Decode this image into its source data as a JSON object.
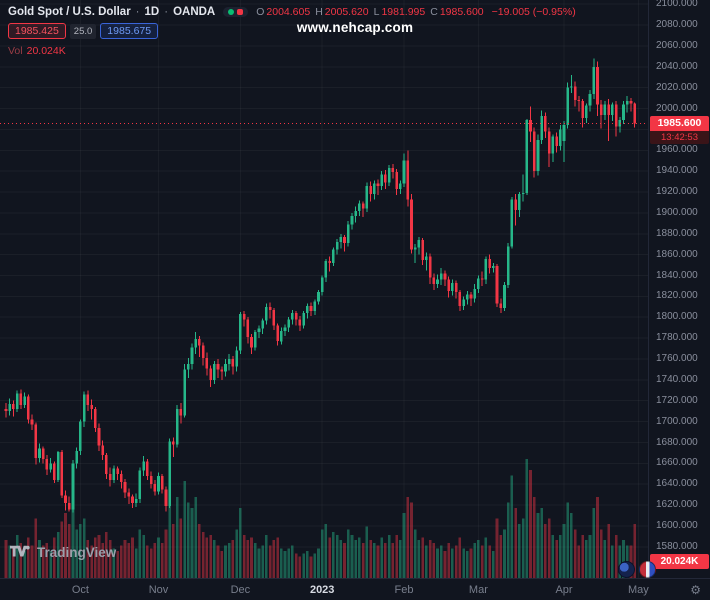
{
  "header": {
    "symbol_title": "Gold Spot / U.S. Dollar",
    "separator": "·",
    "interval": "1D",
    "exchange": "OANDA",
    "ohlc": [
      {
        "label": "O",
        "value": "2004.605"
      },
      {
        "label": "H",
        "value": "2005.620"
      },
      {
        "label": "L",
        "value": "1981.995"
      },
      {
        "label": "C",
        "value": "1985.600"
      }
    ],
    "change": "−19.005 (−0.95%)",
    "sell_price": "1985.425",
    "spread": "25.0",
    "buy_price": "1985.675",
    "volume_label": "Vol",
    "volume_value": "20.024K"
  },
  "watermark": "www.nehcap.com",
  "price_axis": {
    "labels": [
      "2100.000",
      "2080.000",
      "2060.000",
      "2040.000",
      "2020.000",
      "2000.000",
      "1980.000",
      "1960.000",
      "1940.000",
      "1920.000",
      "1900.000",
      "1880.000",
      "1860.000",
      "1840.000",
      "1820.000",
      "1800.000",
      "1780.000",
      "1760.000",
      "1740.000",
      "1720.000",
      "1700.000",
      "1680.000",
      "1660.000",
      "1640.000",
      "1620.000",
      "1600.000",
      "1580.000"
    ],
    "current_price": "1985.600",
    "countdown": "13:42:53",
    "volume_badge": "20.024K"
  },
  "time_axis": {
    "months": [
      {
        "label": "Oct",
        "i": 20
      },
      {
        "label": "Nov",
        "i": 41
      },
      {
        "label": "Dec",
        "i": 63
      },
      {
        "label": "2023",
        "i": 85
      },
      {
        "label": "Feb",
        "i": 107
      },
      {
        "label": "Mar",
        "i": 127
      },
      {
        "label": "Apr",
        "i": 150
      },
      {
        "label": "May",
        "i": 170
      }
    ]
  },
  "footer": {
    "logo": "TradingView"
  },
  "colors": {
    "up": "#26b789",
    "down": "#f23645",
    "accent_blue": "#3964d8",
    "background": "#11151f"
  },
  "chart_data": {
    "type": "candlestick",
    "title": "Gold Spot / U.S. Dollar, 1D, OANDA",
    "x_range": "Sep 2022 – Apr 2023 (daily bars)",
    "x_tick_labels": [
      "Oct",
      "Nov",
      "Dec",
      "2023",
      "Feb",
      "Mar",
      "Apr",
      "May"
    ],
    "ylim": [
      1580,
      2100
    ],
    "y_tick_step": 20,
    "last_bar": {
      "open": 2004.605,
      "high": 2005.62,
      "low": 1981.995,
      "close": 1985.6,
      "volume": "20.024K",
      "change": "−19.005 (−0.95%)"
    },
    "columns": [
      "open",
      "high",
      "low",
      "close",
      "volume_k"
    ],
    "candles": [
      [
        1712,
        1718,
        1704,
        1710,
        14
      ],
      [
        1710,
        1722,
        1706,
        1717,
        12
      ],
      [
        1717,
        1720,
        1705,
        1712,
        11
      ],
      [
        1712,
        1730,
        1709,
        1727,
        16
      ],
      [
        1727,
        1731,
        1712,
        1716,
        13
      ],
      [
        1716,
        1728,
        1713,
        1724,
        10
      ],
      [
        1724,
        1726,
        1698,
        1702,
        15
      ],
      [
        1702,
        1707,
        1692,
        1697,
        12
      ],
      [
        1697,
        1699,
        1659,
        1665,
        22
      ],
      [
        1665,
        1679,
        1661,
        1674,
        14
      ],
      [
        1674,
        1676,
        1660,
        1664,
        12
      ],
      [
        1664,
        1668,
        1649,
        1654,
        13
      ],
      [
        1654,
        1665,
        1651,
        1660,
        10
      ],
      [
        1660,
        1662,
        1641,
        1644,
        15
      ],
      [
        1644,
        1672,
        1642,
        1671,
        17
      ],
      [
        1671,
        1673,
        1627,
        1629,
        21
      ],
      [
        1629,
        1634,
        1615,
        1622,
        24
      ],
      [
        1622,
        1628,
        1614,
        1616,
        20
      ],
      [
        1616,
        1663,
        1613,
        1660,
        26
      ],
      [
        1660,
        1675,
        1655,
        1672,
        18
      ],
      [
        1672,
        1702,
        1668,
        1700,
        20
      ],
      [
        1700,
        1729,
        1695,
        1726,
        22
      ],
      [
        1726,
        1730,
        1710,
        1716,
        14
      ],
      [
        1716,
        1721,
        1702,
        1712,
        12
      ],
      [
        1712,
        1714,
        1690,
        1694,
        15
      ],
      [
        1694,
        1698,
        1672,
        1677,
        16
      ],
      [
        1677,
        1682,
        1663,
        1668,
        13
      ],
      [
        1668,
        1670,
        1645,
        1650,
        17
      ],
      [
        1650,
        1656,
        1638,
        1644,
        14
      ],
      [
        1644,
        1658,
        1641,
        1655,
        11
      ],
      [
        1655,
        1657,
        1644,
        1650,
        10
      ],
      [
        1650,
        1653,
        1636,
        1642,
        12
      ],
      [
        1642,
        1645,
        1627,
        1632,
        14
      ],
      [
        1632,
        1636,
        1621,
        1628,
        13
      ],
      [
        1628,
        1630,
        1617,
        1622,
        15
      ],
      [
        1622,
        1631,
        1618,
        1626,
        11
      ],
      [
        1626,
        1656,
        1622,
        1653,
        18
      ],
      [
        1653,
        1667,
        1648,
        1662,
        16
      ],
      [
        1662,
        1664,
        1644,
        1648,
        12
      ],
      [
        1648,
        1652,
        1636,
        1640,
        11
      ],
      [
        1640,
        1644,
        1629,
        1633,
        13
      ],
      [
        1633,
        1651,
        1630,
        1648,
        15
      ],
      [
        1648,
        1650,
        1631,
        1635,
        13
      ],
      [
        1635,
        1638,
        1614,
        1619,
        18
      ],
      [
        1619,
        1684,
        1617,
        1681,
        34
      ],
      [
        1681,
        1685,
        1666,
        1678,
        20
      ],
      [
        1678,
        1716,
        1675,
        1712,
        30
      ],
      [
        1712,
        1718,
        1698,
        1706,
        22
      ],
      [
        1706,
        1755,
        1704,
        1750,
        36
      ],
      [
        1750,
        1761,
        1742,
        1755,
        28
      ],
      [
        1755,
        1775,
        1750,
        1771,
        26
      ],
      [
        1771,
        1786,
        1765,
        1779,
        30
      ],
      [
        1779,
        1782,
        1762,
        1773,
        20
      ],
      [
        1773,
        1776,
        1754,
        1761,
        17
      ],
      [
        1761,
        1766,
        1744,
        1751,
        15
      ],
      [
        1751,
        1754,
        1733,
        1740,
        16
      ],
      [
        1740,
        1758,
        1736,
        1755,
        14
      ],
      [
        1755,
        1760,
        1742,
        1750,
        12
      ],
      [
        1750,
        1753,
        1740,
        1748,
        10
      ],
      [
        1748,
        1760,
        1743,
        1755,
        12
      ],
      [
        1755,
        1765,
        1749,
        1760,
        13
      ],
      [
        1760,
        1763,
        1745,
        1753,
        14
      ],
      [
        1753,
        1772,
        1748,
        1768,
        18
      ],
      [
        1768,
        1805,
        1765,
        1803,
        26
      ],
      [
        1803,
        1806,
        1791,
        1798,
        16
      ],
      [
        1798,
        1800,
        1775,
        1781,
        14
      ],
      [
        1781,
        1784,
        1765,
        1771,
        15
      ],
      [
        1771,
        1788,
        1768,
        1786,
        13
      ],
      [
        1786,
        1792,
        1780,
        1789,
        11
      ],
      [
        1789,
        1799,
        1784,
        1797,
        12
      ],
      [
        1797,
        1813,
        1793,
        1810,
        16
      ],
      [
        1810,
        1814,
        1799,
        1807,
        12
      ],
      [
        1807,
        1809,
        1788,
        1792,
        14
      ],
      [
        1792,
        1794,
        1773,
        1777,
        15
      ],
      [
        1777,
        1790,
        1774,
        1787,
        11
      ],
      [
        1787,
        1793,
        1782,
        1790,
        10
      ],
      [
        1790,
        1800,
        1786,
        1798,
        11
      ],
      [
        1798,
        1807,
        1793,
        1804,
        12
      ],
      [
        1804,
        1806,
        1792,
        1798,
        9
      ],
      [
        1798,
        1801,
        1787,
        1792,
        8
      ],
      [
        1792,
        1806,
        1789,
        1804,
        9
      ],
      [
        1804,
        1813,
        1799,
        1811,
        10
      ],
      [
        1811,
        1814,
        1801,
        1806,
        8
      ],
      [
        1806,
        1817,
        1802,
        1815,
        9
      ],
      [
        1815,
        1826,
        1812,
        1824,
        11
      ],
      [
        1824,
        1840,
        1821,
        1838,
        18
      ],
      [
        1838,
        1856,
        1834,
        1854,
        20
      ],
      [
        1854,
        1858,
        1844,
        1852,
        15
      ],
      [
        1852,
        1867,
        1849,
        1865,
        17
      ],
      [
        1865,
        1875,
        1860,
        1872,
        16
      ],
      [
        1872,
        1880,
        1866,
        1877,
        14
      ],
      [
        1877,
        1879,
        1863,
        1871,
        13
      ],
      [
        1871,
        1892,
        1868,
        1889,
        18
      ],
      [
        1889,
        1900,
        1884,
        1897,
        16
      ],
      [
        1897,
        1906,
        1891,
        1902,
        14
      ],
      [
        1902,
        1912,
        1897,
        1909,
        15
      ],
      [
        1909,
        1911,
        1896,
        1904,
        13
      ],
      [
        1904,
        1929,
        1901,
        1926,
        19
      ],
      [
        1926,
        1930,
        1911,
        1918,
        14
      ],
      [
        1918,
        1931,
        1913,
        1928,
        13
      ],
      [
        1928,
        1932,
        1917,
        1926,
        12
      ],
      [
        1926,
        1940,
        1922,
        1937,
        15
      ],
      [
        1937,
        1941,
        1923,
        1929,
        13
      ],
      [
        1929,
        1946,
        1926,
        1943,
        16
      ],
      [
        1943,
        1947,
        1933,
        1939,
        13
      ],
      [
        1939,
        1942,
        1917,
        1923,
        16
      ],
      [
        1923,
        1931,
        1918,
        1928,
        14
      ],
      [
        1928,
        1957,
        1925,
        1950,
        24
      ],
      [
        1950,
        1960,
        1906,
        1913,
        30
      ],
      [
        1913,
        1918,
        1861,
        1865,
        28
      ],
      [
        1865,
        1870,
        1852,
        1867,
        18
      ],
      [
        1867,
        1877,
        1860,
        1874,
        14
      ],
      [
        1874,
        1876,
        1850,
        1855,
        15
      ],
      [
        1855,
        1862,
        1845,
        1858,
        12
      ],
      [
        1858,
        1861,
        1832,
        1838,
        14
      ],
      [
        1838,
        1842,
        1826,
        1832,
        13
      ],
      [
        1832,
        1841,
        1828,
        1836,
        11
      ],
      [
        1836,
        1847,
        1831,
        1842,
        12
      ],
      [
        1842,
        1845,
        1830,
        1836,
        10
      ],
      [
        1836,
        1839,
        1819,
        1825,
        13
      ],
      [
        1825,
        1836,
        1821,
        1833,
        11
      ],
      [
        1833,
        1835,
        1818,
        1824,
        12
      ],
      [
        1824,
        1826,
        1806,
        1811,
        15
      ],
      [
        1811,
        1820,
        1807,
        1817,
        11
      ],
      [
        1817,
        1825,
        1812,
        1822,
        10
      ],
      [
        1822,
        1824,
        1811,
        1818,
        11
      ],
      [
        1818,
        1832,
        1814,
        1827,
        13
      ],
      [
        1827,
        1840,
        1823,
        1837,
        14
      ],
      [
        1837,
        1844,
        1830,
        1836,
        12
      ],
      [
        1836,
        1858,
        1832,
        1856,
        15
      ],
      [
        1856,
        1860,
        1842,
        1847,
        12
      ],
      [
        1847,
        1852,
        1843,
        1849,
        10
      ],
      [
        1849,
        1851,
        1810,
        1813,
        22
      ],
      [
        1813,
        1818,
        1804,
        1809,
        16
      ],
      [
        1809,
        1834,
        1806,
        1831,
        18
      ],
      [
        1831,
        1871,
        1828,
        1868,
        28
      ],
      [
        1868,
        1915,
        1866,
        1913,
        38
      ],
      [
        1913,
        1918,
        1888,
        1903,
        26
      ],
      [
        1903,
        1920,
        1896,
        1918,
        20
      ],
      [
        1918,
        1937,
        1911,
        1919,
        22
      ],
      [
        1919,
        1990,
        1917,
        1989,
        44
      ],
      [
        1989,
        2002,
        1968,
        1978,
        40
      ],
      [
        1978,
        1982,
        1934,
        1940,
        30
      ],
      [
        1940,
        1975,
        1936,
        1970,
        24
      ],
      [
        1970,
        1998,
        1966,
        1993,
        26
      ],
      [
        1993,
        1996,
        1972,
        1978,
        20
      ],
      [
        1978,
        1982,
        1944,
        1957,
        22
      ],
      [
        1957,
        1975,
        1949,
        1973,
        16
      ],
      [
        1973,
        1977,
        1958,
        1964,
        14
      ],
      [
        1964,
        1984,
        1960,
        1980,
        16
      ],
      [
        1969,
        1988,
        1949,
        1984,
        20
      ],
      [
        1984,
        2025,
        1981,
        2020,
        28
      ],
      [
        2020,
        2032,
        2015,
        2021,
        24
      ],
      [
        2021,
        2026,
        2002,
        2008,
        18
      ],
      [
        2008,
        2012,
        1997,
        2007,
        12
      ],
      [
        2007,
        2009,
        1982,
        1991,
        16
      ],
      [
        1991,
        2005,
        1986,
        2003,
        14
      ],
      [
        2003,
        2018,
        1997,
        2014,
        16
      ],
      [
        2014,
        2048,
        2009,
        2040,
        26
      ],
      [
        2040,
        2045,
        1993,
        2004,
        30
      ],
      [
        2004,
        2008,
        1981,
        1994,
        18
      ],
      [
        1994,
        2007,
        1989,
        2004,
        14
      ],
      [
        2004,
        2009,
        1969,
        1994,
        20
      ],
      [
        1994,
        2006,
        1988,
        2004,
        12
      ],
      [
        2004,
        2007,
        1973,
        1983,
        16
      ],
      [
        1983,
        1992,
        1977,
        1989,
        12
      ],
      [
        1989,
        2007,
        1985,
        2004,
        14
      ],
      [
        2004,
        2012,
        1996,
        2007,
        12
      ],
      [
        2007,
        2010,
        1997,
        2005,
        12
      ],
      [
        2004.605,
        2005.62,
        1981.995,
        1985.6,
        20.024
      ]
    ]
  }
}
